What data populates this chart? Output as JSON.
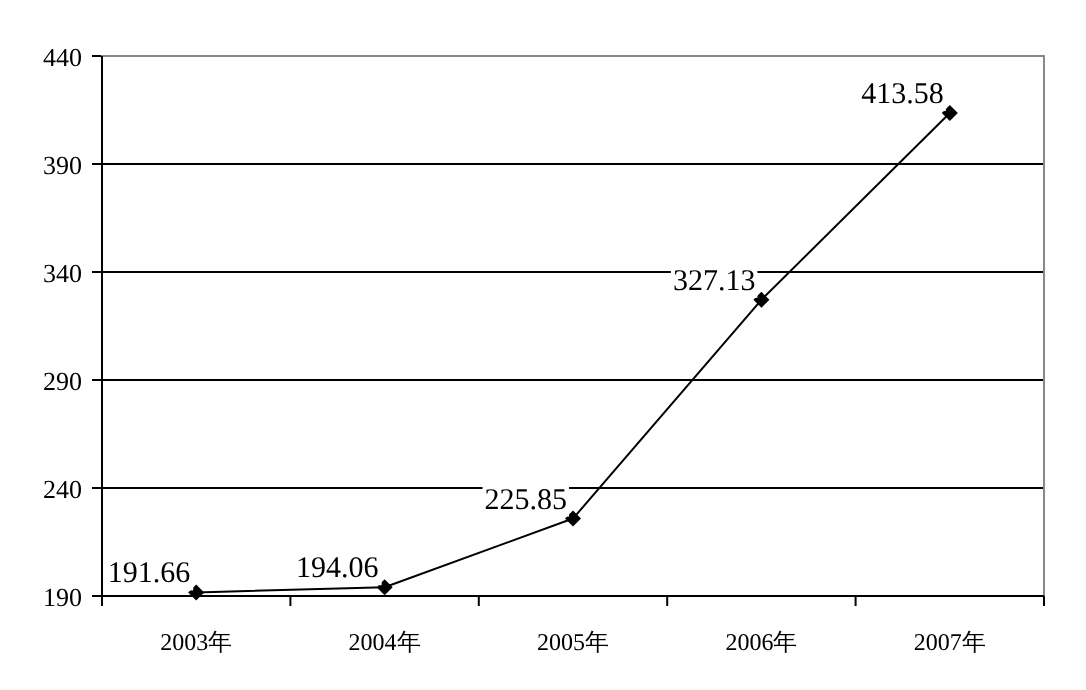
{
  "chart_data": {
    "type": "line",
    "categories": [
      "2003年",
      "2004年",
      "2005年",
      "2006年",
      "2007年"
    ],
    "series": [
      {
        "color": "#000000",
        "values": [
          191.66,
          194.06,
          225.85,
          327.13,
          413.58
        ]
      }
    ],
    "ylim": [
      190,
      440
    ],
    "yticks": [
      190,
      240,
      290,
      340,
      390,
      440
    ],
    "grid": "y",
    "marker": "diamond",
    "line_style": "solid",
    "data_labels": true
  }
}
